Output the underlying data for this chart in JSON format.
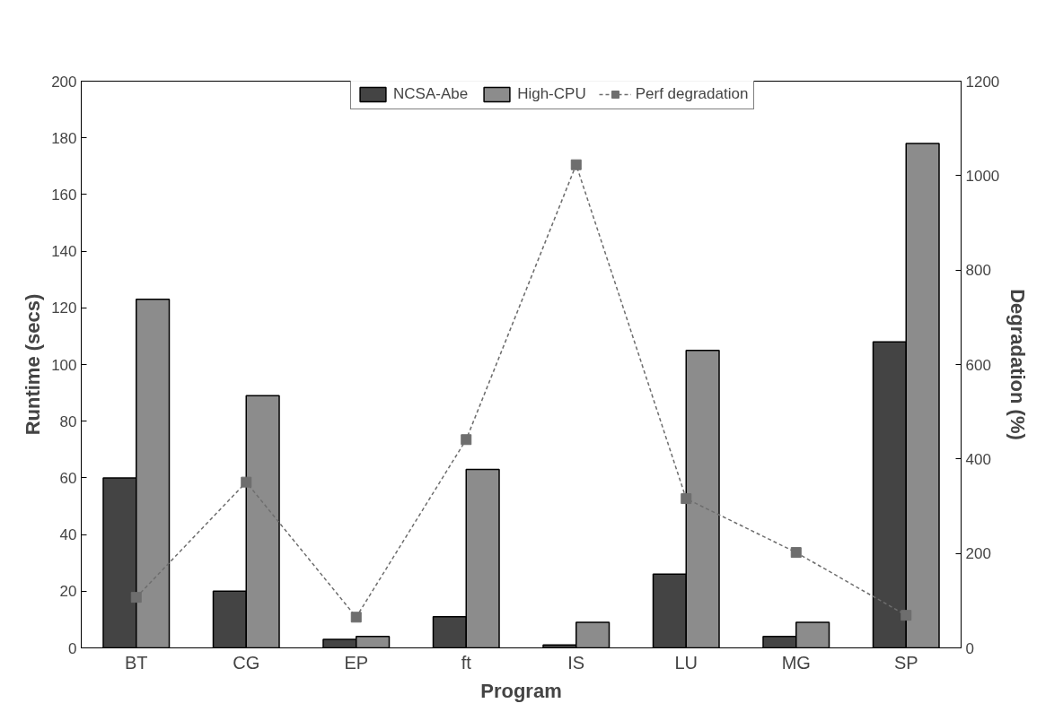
{
  "chart_data": {
    "type": "bar",
    "xlabel": "Program",
    "ylabel": "Runtime (secs)",
    "y2label": "Degradation (%)",
    "categories": [
      "BT",
      "CG",
      "EP",
      "ft",
      "IS",
      "LU",
      "MG",
      "SP"
    ],
    "series": [
      {
        "name": "NCSA-Abe",
        "color": "#444444",
        "values": [
          60,
          20,
          3,
          11,
          1,
          26,
          4,
          108
        ]
      },
      {
        "name": "High-CPU",
        "color": "#8c8c8c",
        "values": [
          123,
          89,
          4,
          63,
          9,
          105,
          9,
          178
        ]
      },
      {
        "name": "Perf degradation",
        "type": "line",
        "axis": "y2",
        "color": "#6e6e6e",
        "marker": "square",
        "line_style": "dashed",
        "values": [
          107,
          351,
          65,
          441,
          1023,
          316,
          202,
          69
        ]
      }
    ],
    "ylim": [
      0,
      200
    ],
    "yticks": [
      0,
      20,
      40,
      60,
      80,
      100,
      120,
      140,
      160,
      180,
      200
    ],
    "y2lim": [
      0,
      1200
    ],
    "y2ticks": [
      0,
      200,
      400,
      600,
      800,
      1000,
      1200
    ],
    "legend": "top"
  }
}
